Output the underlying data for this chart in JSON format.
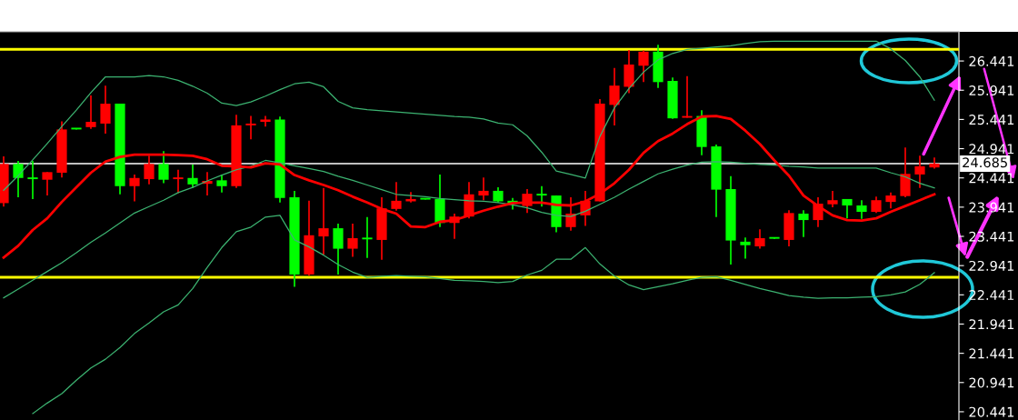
{
  "chart_data": {
    "type": "candlestick",
    "categories": [
      null,
      null,
      null,
      null,
      null,
      null,
      null,
      null,
      null,
      null,
      null,
      null,
      null,
      null,
      null,
      null,
      null,
      null,
      null,
      null,
      null,
      null,
      null,
      null,
      null,
      null,
      null,
      null,
      null,
      null,
      null,
      null,
      null,
      null,
      null,
      null,
      null,
      null,
      null,
      null,
      null,
      null,
      null,
      null,
      null,
      null,
      null,
      null,
      null,
      null,
      null,
      null,
      null,
      null,
      null,
      null,
      null,
      null,
      null,
      null,
      null,
      null,
      null,
      null,
      null
    ],
    "ohlc": [
      [
        24.01,
        24.81,
        23.95,
        24.68
      ],
      [
        24.68,
        24.73,
        24.11,
        24.44
      ],
      [
        24.45,
        24.73,
        24.08,
        24.42
      ],
      [
        24.41,
        24.54,
        24.14,
        24.54
      ],
      [
        24.53,
        25.41,
        24.45,
        25.27
      ],
      [
        25.28,
        25.28,
        25.27,
        25.27
      ],
      [
        25.31,
        25.85,
        25.28,
        25.4
      ],
      [
        25.37,
        26.02,
        25.2,
        25.71
      ],
      [
        25.71,
        25.71,
        24.16,
        24.3
      ],
      [
        24.3,
        24.5,
        24.04,
        24.44
      ],
      [
        24.42,
        24.82,
        24.33,
        24.68
      ],
      [
        24.68,
        24.9,
        24.35,
        24.41
      ],
      [
        24.42,
        24.58,
        24.18,
        24.43
      ],
      [
        24.44,
        24.67,
        24.27,
        24.33
      ],
      [
        24.34,
        24.54,
        24.14,
        24.39
      ],
      [
        24.4,
        24.5,
        24.19,
        24.3
      ],
      [
        24.3,
        25.52,
        24.27,
        25.34
      ],
      [
        25.34,
        25.5,
        25.1,
        25.35
      ],
      [
        25.4,
        25.5,
        25.32,
        25.44
      ],
      [
        25.44,
        25.49,
        24.02,
        24.1
      ],
      [
        24.11,
        24.22,
        22.58,
        22.79
      ],
      [
        22.79,
        24.05,
        22.77,
        23.46
      ],
      [
        23.44,
        24.27,
        23.13,
        23.58
      ],
      [
        23.58,
        23.66,
        22.79,
        23.23
      ],
      [
        23.23,
        23.66,
        23.09,
        23.41
      ],
      [
        23.42,
        23.77,
        23.07,
        23.39
      ],
      [
        23.38,
        24.11,
        23.04,
        23.92
      ],
      [
        23.91,
        24.37,
        23.88,
        24.05
      ],
      [
        24.04,
        24.2,
        24.02,
        24.08
      ],
      [
        24.08,
        24.08,
        24.07,
        24.07
      ],
      [
        24.08,
        24.5,
        23.6,
        23.67
      ],
      [
        23.67,
        23.83,
        23.4,
        23.78
      ],
      [
        23.78,
        24.37,
        23.75,
        24.16
      ],
      [
        24.14,
        24.45,
        24.06,
        24.22
      ],
      [
        24.22,
        24.28,
        24.02,
        24.04
      ],
      [
        24.05,
        24.1,
        23.9,
        24.0
      ],
      [
        23.96,
        24.25,
        23.84,
        24.17
      ],
      [
        24.15,
        24.3,
        23.95,
        24.14
      ],
      [
        24.14,
        24.14,
        23.51,
        23.6
      ],
      [
        23.6,
        24.11,
        23.54,
        23.83
      ],
      [
        23.8,
        24.22,
        23.62,
        24.05
      ],
      [
        24.04,
        25.79,
        24.04,
        25.71
      ],
      [
        25.69,
        26.32,
        25.34,
        26.02
      ],
      [
        26.0,
        26.63,
        25.89,
        26.38
      ],
      [
        26.36,
        26.62,
        26.08,
        26.6
      ],
      [
        26.6,
        26.72,
        25.98,
        26.08
      ],
      [
        26.1,
        26.16,
        25.45,
        25.46
      ],
      [
        25.47,
        26.18,
        25.47,
        25.5
      ],
      [
        25.5,
        25.6,
        24.83,
        24.97
      ],
      [
        24.98,
        25.01,
        23.77,
        24.24
      ],
      [
        24.25,
        24.47,
        22.96,
        23.37
      ],
      [
        23.35,
        23.42,
        23.06,
        23.29
      ],
      [
        23.27,
        23.56,
        23.23,
        23.41
      ],
      [
        23.41,
        23.41,
        23.4,
        23.4
      ],
      [
        23.38,
        23.89,
        23.27,
        23.84
      ],
      [
        23.83,
        23.89,
        23.43,
        23.72
      ],
      [
        23.72,
        24.11,
        23.6,
        24.0
      ],
      [
        23.99,
        24.22,
        23.94,
        24.06
      ],
      [
        24.08,
        24.08,
        23.75,
        23.97
      ],
      [
        23.97,
        24.06,
        23.74,
        23.86
      ],
      [
        23.86,
        24.12,
        23.84,
        24.06
      ],
      [
        24.03,
        24.19,
        23.92,
        24.14
      ],
      [
        24.13,
        24.96,
        24.11,
        24.51
      ],
      [
        24.5,
        24.82,
        24.27,
        24.64
      ],
      [
        24.62,
        24.79,
        24.6,
        24.685
      ]
    ],
    "colors": [
      "#ff0000",
      "#00ff00",
      "#00ff00",
      "#ff0000",
      "#ff0000",
      "#00ff00",
      "#ff0000",
      "#ff0000",
      "#00ff00",
      "#ff0000",
      "#ff0000",
      "#00ff00",
      "#ff0000",
      "#00ff00",
      "#ff0000",
      "#00ff00",
      "#ff0000",
      "#ff0000",
      "#ff0000",
      "#00ff00",
      "#00ff00",
      "#ff0000",
      "#ff0000",
      "#00ff00",
      "#ff0000",
      "#00ff00",
      "#ff0000",
      "#ff0000",
      "#ff0000",
      "#00ff00",
      "#00ff00",
      "#ff0000",
      "#ff0000",
      "#ff0000",
      "#00ff00",
      "#00ff00",
      "#ff0000",
      "#00ff00",
      "#00ff00",
      "#ff0000",
      "#ff0000",
      "#ff0000",
      "#ff0000",
      "#ff0000",
      "#ff0000",
      "#00ff00",
      "#00ff00",
      "#ff0000",
      "#00ff00",
      "#00ff00",
      "#00ff00",
      "#00ff00",
      "#ff0000",
      "#00ff00",
      "#ff0000",
      "#00ff00",
      "#ff0000",
      "#ff0000",
      "#00ff00",
      "#00ff00",
      "#ff0000",
      "#ff0000",
      "#ff0000",
      "#ff0000",
      "#ff0000"
    ],
    "series": [
      {
        "type": "line",
        "color": "#3cb371",
        "values": [
          24.23,
          24.48,
          24.75,
          25.03,
          25.32,
          25.6,
          25.9,
          26.17,
          26.17,
          26.17,
          26.19,
          26.17,
          26.11,
          26.01,
          25.89,
          25.72,
          25.68,
          25.74,
          25.84,
          25.95,
          26.05,
          26.08,
          26.0,
          25.75,
          25.64,
          25.61,
          25.59,
          25.57,
          25.55,
          25.53,
          25.51,
          25.49,
          25.48,
          25.45,
          25.38,
          25.35,
          25.16,
          24.88,
          24.56,
          24.5,
          24.44,
          25.15,
          25.64,
          25.97,
          26.25,
          26.46,
          26.57,
          26.64,
          26.66,
          26.68,
          26.7,
          26.74,
          26.77,
          26.78,
          26.78,
          26.78,
          26.78,
          26.78,
          26.78,
          26.78,
          26.78,
          26.65,
          26.45,
          26.17,
          25.77
        ]
      },
      {
        "type": "line",
        "color": "#3cb371",
        "values": [
          22.39,
          22.54,
          22.69,
          22.84,
          22.99,
          23.16,
          23.34,
          23.5,
          23.67,
          23.84,
          23.95,
          24.06,
          24.19,
          24.28,
          24.39,
          24.49,
          24.58,
          24.64,
          24.74,
          24.7,
          24.65,
          24.6,
          24.55,
          24.47,
          24.4,
          24.32,
          24.24,
          24.16,
          24.14,
          24.12,
          24.09,
          24.07,
          24.05,
          24.04,
          24.02,
          23.98,
          23.93,
          23.85,
          23.8,
          23.78,
          23.87,
          23.99,
          24.11,
          24.25,
          24.38,
          24.51,
          24.59,
          24.66,
          24.71,
          24.72,
          24.71,
          24.69,
          24.67,
          24.66,
          24.64,
          24.63,
          24.61,
          24.61,
          24.61,
          24.61,
          24.61,
          24.53,
          24.46,
          24.35,
          24.27
        ]
      },
      {
        "type": "line",
        "color": "#3cb371",
        "values": [
          null,
          null,
          20.41,
          20.59,
          20.75,
          20.98,
          21.19,
          21.34,
          21.54,
          21.78,
          21.96,
          22.15,
          22.27,
          22.55,
          22.91,
          23.25,
          23.52,
          23.6,
          23.77,
          23.8,
          23.38,
          23.26,
          23.12,
          22.96,
          22.83,
          22.74,
          22.76,
          22.77,
          22.76,
          22.75,
          22.72,
          22.69,
          22.68,
          22.67,
          22.65,
          22.67,
          22.78,
          22.86,
          23.05,
          23.05,
          23.25,
          22.97,
          22.76,
          22.61,
          22.53,
          22.58,
          22.63,
          22.69,
          22.74,
          22.75,
          22.69,
          22.62,
          22.55,
          22.49,
          22.43,
          22.4,
          22.38,
          22.39,
          22.39,
          22.4,
          22.41,
          22.44,
          22.49,
          22.62,
          22.82
        ]
      },
      {
        "type": "line",
        "color": "#ff0000",
        "values": [
          23.08,
          23.28,
          23.55,
          23.75,
          24.03,
          24.28,
          24.53,
          24.72,
          24.8,
          24.84,
          24.84,
          24.84,
          24.83,
          24.82,
          24.76,
          24.65,
          24.64,
          24.62,
          24.69,
          24.67,
          24.49,
          24.4,
          24.32,
          24.23,
          24.12,
          24.02,
          23.91,
          23.83,
          23.61,
          23.6,
          23.69,
          23.72,
          23.8,
          23.88,
          23.95,
          24.01,
          24.02,
          24.02,
          23.98,
          23.97,
          24.04,
          24.17,
          24.35,
          24.58,
          24.87,
          25.07,
          25.2,
          25.36,
          25.49,
          25.5,
          25.45,
          25.25,
          25.02,
          24.74,
          24.48,
          24.14,
          23.96,
          23.8,
          23.72,
          23.71,
          23.75,
          23.86,
          23.96,
          24.06,
          24.16
        ]
      }
    ],
    "ref_lines": [
      {
        "axis": "y",
        "value": 24.685,
        "label": "24.685",
        "color": "#ffffff"
      },
      {
        "axis": "y",
        "value": 26.64,
        "color": "#ffff00"
      },
      {
        "axis": "y",
        "value": 22.74,
        "color": "#ffff00"
      }
    ],
    "ylim": [
      20.3,
      26.94
    ],
    "yticks": [
      20.441,
      20.941,
      21.441,
      21.941,
      22.441,
      22.941,
      23.441,
      23.941,
      24.441,
      24.941,
      25.441,
      25.941,
      26.441
    ],
    "tick_labels": "y",
    "grid": false
  }
}
